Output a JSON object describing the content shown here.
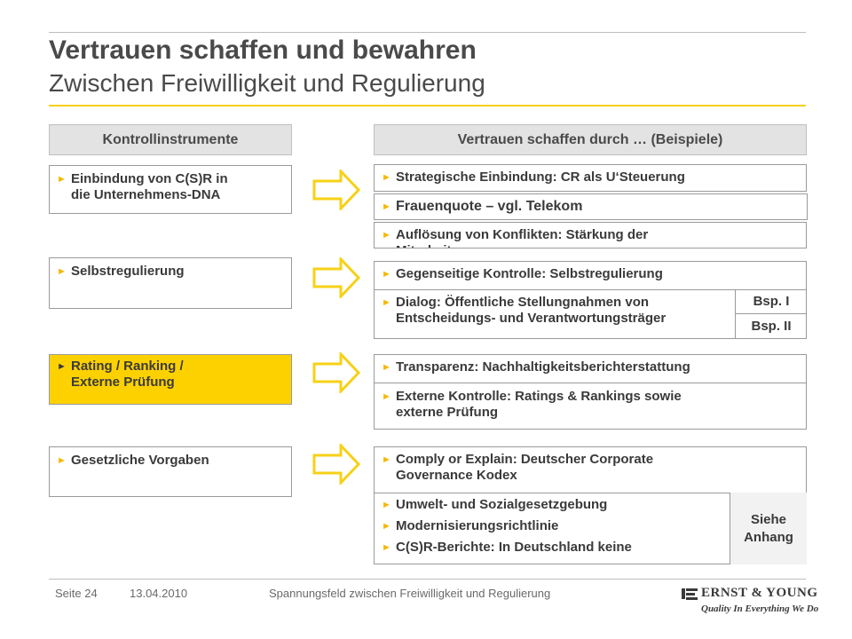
{
  "title": "Vertrauen schaffen und bewahren",
  "subtitle": "Zwischen Freiwilligkeit und Regulierung",
  "colors": {
    "accent": "#fdd100",
    "bullet": "#f5b800",
    "rule": "#f7d117"
  },
  "headers": {
    "left": "Kontrollinstrumente",
    "right": "Vertrauen schaffen durch … (Beispiele)"
  },
  "groups": [
    {
      "instrument": "Einbindung von C(S)R in\ndie Unternehmens-DNA",
      "examples": [
        "Strategische Einbindung: CR als U‘Steuerung",
        "Frauenquote – vgl. Telekom",
        "Auflösung von Konflikten: Stärkung der\nMitarbeiter"
      ]
    },
    {
      "instrument": "Selbstregulierung",
      "examples": [
        "Gegenseitige Kontrolle: Selbstregulierung",
        "Dialog: Öffentliche Stellungnahmen von\nEntscheidungs- und Verantwortungsträger"
      ],
      "side": [
        "Bsp. I",
        "Bsp. II"
      ]
    },
    {
      "instrument": "Rating / Ranking /\nExterne Prüfung",
      "examples": [
        "Transparenz: Nachhaltigkeitsberichterstattung",
        "Externe Kontrolle: Ratings & Rankings sowie\nexterne Prüfung"
      ]
    },
    {
      "instrument": "Gesetzliche Vorgaben",
      "examples": [
        "Comply or Explain: Deutscher Corporate\nGovernance Kodex",
        "Umwelt- und Sozialgesetzgebung",
        "Modernisierungsrichtlinie",
        "C(S)R-Berichte: In Deutschland keine"
      ],
      "side": "Siehe\nAnhang"
    }
  ],
  "footer": {
    "page": "Seite 24",
    "date": "13.04.2010",
    "caption": "Spannungsfeld zwischen Freiwilligkeit und Regulierung"
  },
  "logo": {
    "name": "ERNST & YOUNG",
    "tagline": "Quality In Everything We Do"
  }
}
